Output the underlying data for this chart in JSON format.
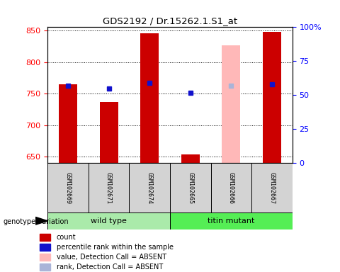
{
  "title": "GDS2192 / Dr.15262.1.S1_at",
  "samples": [
    "GSM102669",
    "GSM102671",
    "GSM102674",
    "GSM102665",
    "GSM102666",
    "GSM102667"
  ],
  "ylim_left": [
    640,
    855
  ],
  "ylim_right": [
    0,
    100
  ],
  "yticks_left": [
    650,
    700,
    750,
    800,
    850
  ],
  "yticks_right": [
    0,
    25,
    50,
    75,
    100
  ],
  "ytick_labels_right": [
    "0",
    "25",
    "50",
    "75",
    "100%"
  ],
  "red_bars": [
    765,
    737,
    845,
    654,
    0,
    848
  ],
  "pink_bars": [
    0,
    0,
    0,
    0,
    826,
    0
  ],
  "blue_dots": [
    762,
    758,
    767,
    751,
    0,
    765
  ],
  "lblue_dots": [
    0,
    0,
    0,
    0,
    762,
    0
  ],
  "bar_width": 0.45,
  "red_color": "#cc0000",
  "blue_color": "#1111cc",
  "pink_color": "#ffb8b8",
  "lightblue_color": "#aab4d8",
  "wt_color": "#aaeaaa",
  "mut_color": "#55ee55",
  "label_bg_color": "#d3d3d3",
  "group_label": "genotype/variation",
  "legend_items": [
    {
      "label": "count",
      "color": "#cc0000"
    },
    {
      "label": "percentile rank within the sample",
      "color": "#1111cc"
    },
    {
      "label": "value, Detection Call = ABSENT",
      "color": "#ffb8b8"
    },
    {
      "label": "rank, Detection Call = ABSENT",
      "color": "#aab4d8"
    }
  ]
}
